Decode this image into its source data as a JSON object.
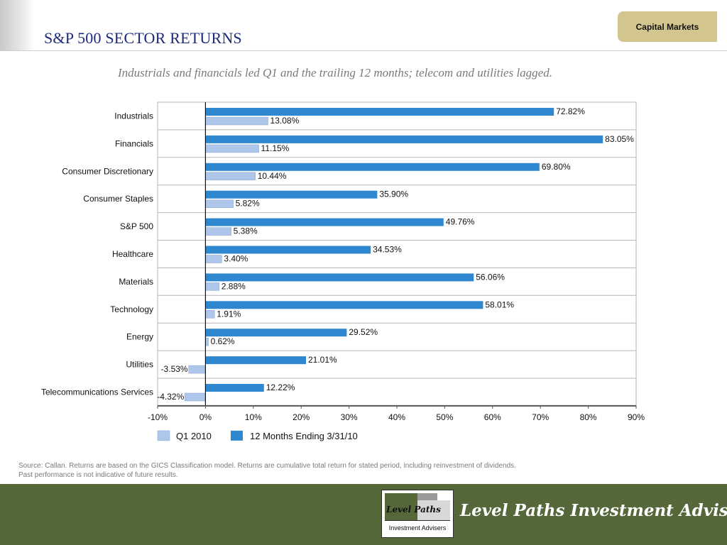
{
  "header": {
    "title": "S&P 500 SECTOR RETURNS",
    "section_tab": "Capital Markets"
  },
  "subtitle": "Industrials and financials led Q1 and the trailing 12 months; telecom and utilities lagged.",
  "chart_data": {
    "type": "bar",
    "orientation": "horizontal",
    "categories": [
      "Industrials",
      "Financials",
      "Consumer Discretionary",
      "Consumer Staples",
      "S&P 500",
      "Healthcare",
      "Materials",
      "Technology",
      "Energy",
      "Utilities",
      "Telecommunications Services"
    ],
    "series": [
      {
        "name": "Q1 2010",
        "color": "#aec6ea",
        "values": [
          13.08,
          11.15,
          10.44,
          5.82,
          5.38,
          3.4,
          2.88,
          1.91,
          0.62,
          -3.53,
          -4.32
        ],
        "labels": [
          "13.08%",
          "11.15%",
          "10.44%",
          "5.82%",
          "5.38%",
          "3.40%",
          "2.88%",
          "1.91%",
          "0.62%",
          "-3.53%",
          "-4.32%"
        ]
      },
      {
        "name": "12 Months Ending 3/31/10",
        "color": "#2f88cf",
        "values": [
          72.82,
          83.05,
          69.8,
          35.9,
          49.76,
          34.53,
          56.06,
          58.01,
          29.52,
          21.01,
          12.22
        ],
        "labels": [
          "72.82%",
          "83.05%",
          "69.80%",
          "35.90%",
          "49.76%",
          "34.53%",
          "56.06%",
          "58.01%",
          "29.52%",
          "21.01%",
          "12.22%"
        ]
      }
    ],
    "xlim": [
      -10,
      90
    ],
    "x_ticks": [
      -10,
      0,
      10,
      20,
      30,
      40,
      50,
      60,
      70,
      80,
      90
    ],
    "x_tick_labels": [
      "-10%",
      "0%",
      "10%",
      "20%",
      "30%",
      "40%",
      "50%",
      "60%",
      "70%",
      "80%",
      "90%"
    ],
    "title": "",
    "xlabel": "",
    "ylabel": "",
    "legend_position": "bottom",
    "grid": "horizontal row separators"
  },
  "source_note": [
    "Source: Callan. Returns are based on the GICS Classification model. Returns are cumulative total return for stated period, including reinvestment of dividends.",
    "Past performance is not indicative of future results."
  ],
  "footer": {
    "brand_name": "Level Paths Investment Advisers",
    "logo_word": "Level Paths",
    "logo_sub": "Investment Advisers",
    "band_color": "#56673a"
  }
}
